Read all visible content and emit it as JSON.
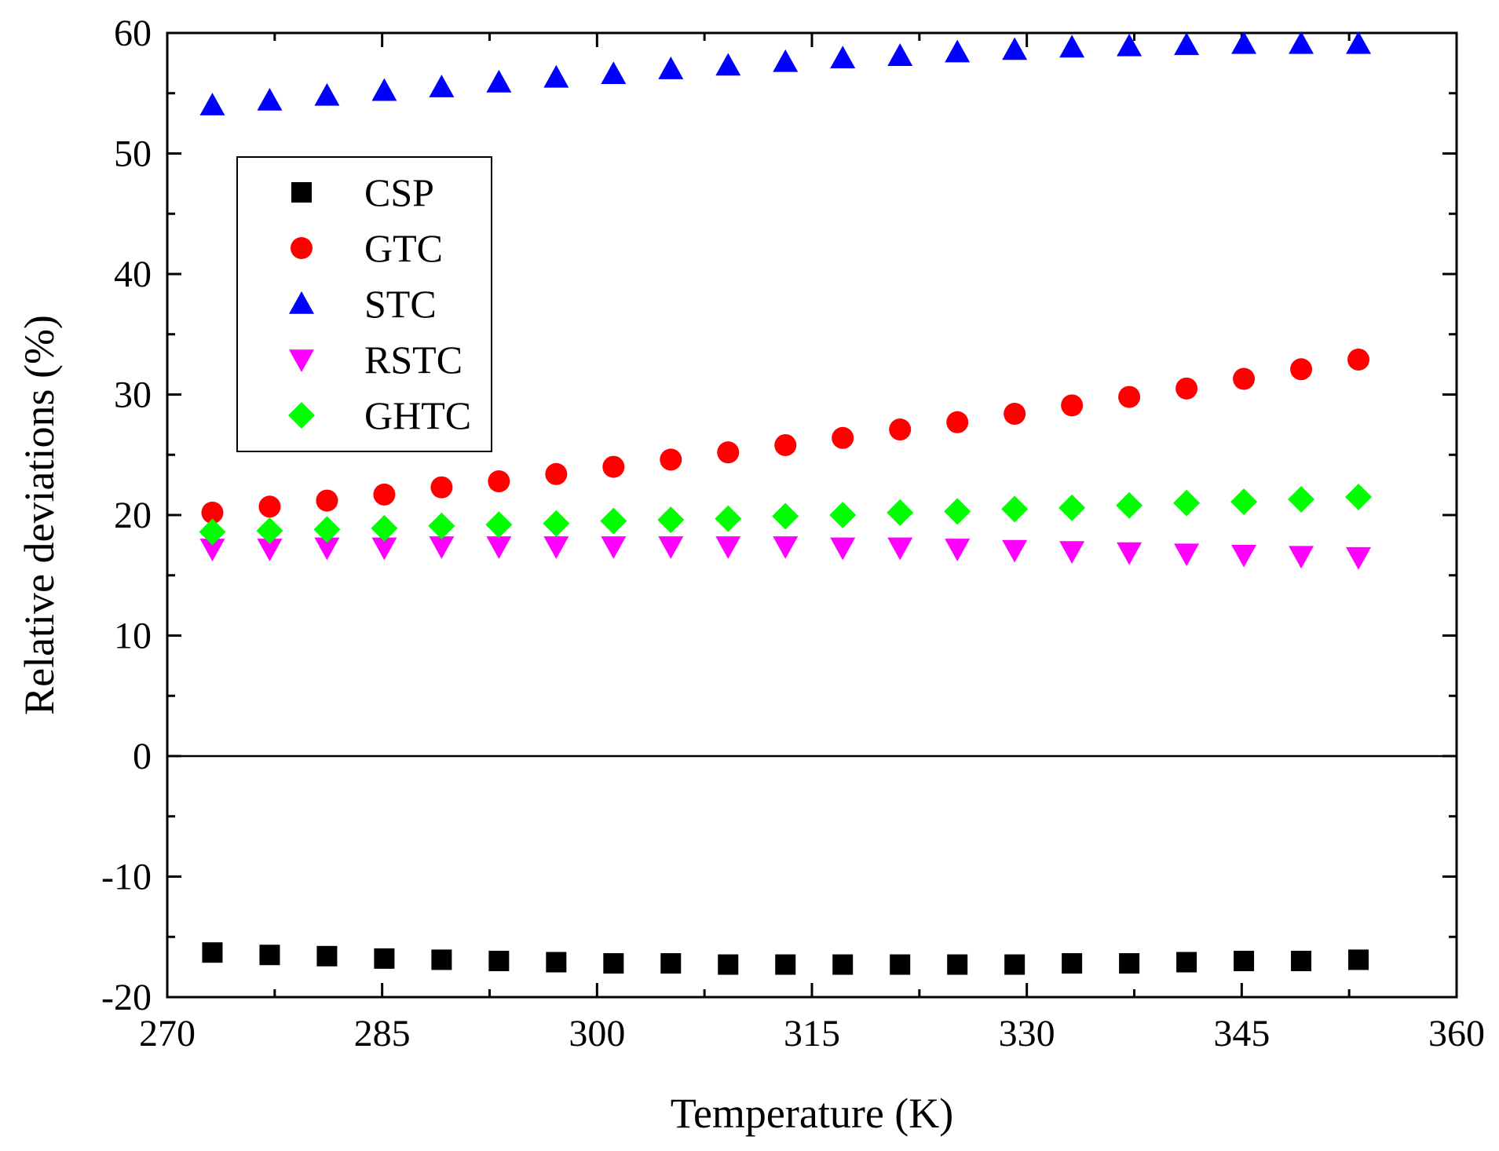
{
  "chart_data": {
    "type": "scatter",
    "title": "",
    "xlabel": "Temperature (K)",
    "ylabel": "Relative deviations (%)",
    "xlim": [
      270,
      360
    ],
    "ylim": [
      -20,
      60
    ],
    "x_ticks": [
      "270",
      "285",
      "300",
      "315",
      "330",
      "345",
      "360"
    ],
    "y_ticks": [
      "-20",
      "-10",
      "0",
      "10",
      "20",
      "30",
      "40",
      "50",
      "60"
    ],
    "x_tick_values": [
      270,
      285,
      300,
      315,
      330,
      345,
      360
    ],
    "y_tick_values": [
      -20,
      -10,
      0,
      10,
      20,
      30,
      40,
      50,
      60
    ],
    "zero_line": true,
    "legend_position": "upper-left",
    "x": [
      273.15,
      277.15,
      281.15,
      285.15,
      289.15,
      293.15,
      297.15,
      301.15,
      305.15,
      309.15,
      313.15,
      317.15,
      321.15,
      325.15,
      329.15,
      333.15,
      337.15,
      341.15,
      345.15,
      349.15,
      353.15
    ],
    "series": [
      {
        "name": "CSP",
        "marker": "square",
        "color": "#000000",
        "values": [
          -16.3,
          -16.5,
          -16.6,
          -16.8,
          -16.9,
          -17.0,
          -17.1,
          -17.2,
          -17.2,
          -17.3,
          -17.3,
          -17.3,
          -17.3,
          -17.3,
          -17.3,
          -17.2,
          -17.2,
          -17.1,
          -17.0,
          -17.0,
          -16.9
        ]
      },
      {
        "name": "GTC",
        "marker": "circle",
        "color": "#ff0000",
        "values": [
          20.2,
          20.7,
          21.2,
          21.7,
          22.3,
          22.8,
          23.4,
          24.0,
          24.6,
          25.2,
          25.8,
          26.4,
          27.1,
          27.7,
          28.4,
          29.1,
          29.8,
          30.5,
          31.3,
          32.1,
          32.9
        ]
      },
      {
        "name": "STC",
        "marker": "triangle-up",
        "color": "#0000ff",
        "values": [
          54.0,
          54.4,
          54.8,
          55.2,
          55.5,
          55.9,
          56.3,
          56.6,
          57.0,
          57.3,
          57.6,
          57.9,
          58.1,
          58.4,
          58.6,
          58.8,
          58.9,
          59.0,
          59.1,
          59.1,
          59.1
        ]
      },
      {
        "name": "RSTC",
        "marker": "triangle-down",
        "color": "#ff00ff",
        "values": [
          17.2,
          17.2,
          17.3,
          17.3,
          17.4,
          17.4,
          17.4,
          17.4,
          17.4,
          17.4,
          17.4,
          17.3,
          17.3,
          17.2,
          17.1,
          17.0,
          16.9,
          16.8,
          16.7,
          16.6,
          16.5
        ]
      },
      {
        "name": "GHTC",
        "marker": "diamond",
        "color": "#00ff00",
        "values": [
          18.6,
          18.7,
          18.8,
          18.9,
          19.1,
          19.2,
          19.3,
          19.5,
          19.6,
          19.7,
          19.9,
          20.0,
          20.2,
          20.3,
          20.5,
          20.6,
          20.8,
          21.0,
          21.1,
          21.3,
          21.5
        ]
      }
    ]
  }
}
